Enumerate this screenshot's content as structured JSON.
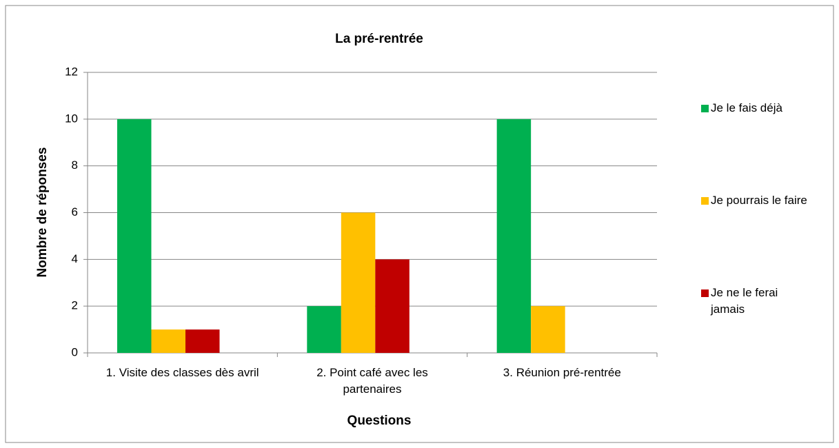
{
  "chart_data": {
    "type": "bar",
    "title": "La pré-rentrée",
    "x_label": "Questions",
    "y_label": "Nombre de réponses",
    "categories": [
      "1. Visite des classes dès avril",
      "2. Point café avec les partenaires",
      "3. Réunion pré-rentrée"
    ],
    "series": [
      {
        "name": "Je le fais déjà",
        "color": "#00b050",
        "values": [
          10,
          2,
          10
        ]
      },
      {
        "name": "Je pourrais le faire",
        "color": "#ffc000",
        "values": [
          1,
          6,
          2
        ]
      },
      {
        "name": "Je ne le ferai jamais",
        "color": "#c00000",
        "values": [
          1,
          4,
          0
        ]
      }
    ],
    "ylim": [
      0,
      12
    ],
    "yticks": [
      0,
      2,
      4,
      6,
      8,
      10,
      12
    ],
    "grid": true,
    "legend": "right"
  }
}
